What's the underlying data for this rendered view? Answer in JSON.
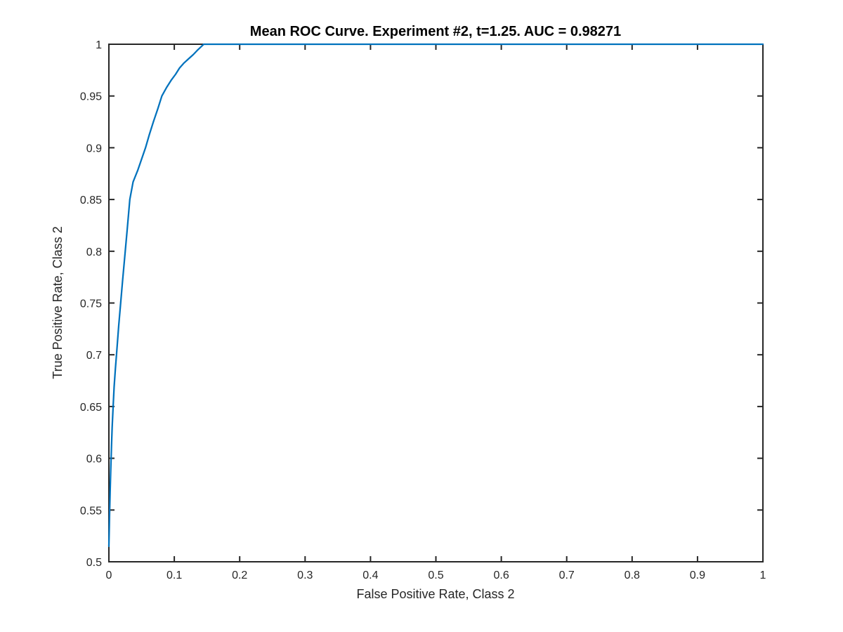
{
  "figure": {
    "background": "#ffffff"
  },
  "chart_data": {
    "type": "line",
    "title": "Mean ROC Curve. Experiment #2, t=1.25. AUC = 0.98271",
    "xlabel": "False Positive Rate, Class 2",
    "ylabel": "True Positive Rate, Class 2",
    "xlim": [
      0,
      1
    ],
    "ylim": [
      0.5,
      1
    ],
    "xticks": [
      0,
      0.1,
      0.2,
      0.3,
      0.4,
      0.5,
      0.6,
      0.7,
      0.8,
      0.9,
      1
    ],
    "xtick_labels": [
      "0",
      "0.1",
      "0.2",
      "0.3",
      "0.4",
      "0.5",
      "0.6",
      "0.7",
      "0.8",
      "0.9",
      "1"
    ],
    "yticks": [
      0.5,
      0.55,
      0.6,
      0.65,
      0.7,
      0.75,
      0.8,
      0.85,
      0.9,
      0.95,
      1
    ],
    "ytick_labels": [
      "0.5",
      "0.55",
      "0.6",
      "0.65",
      "0.7",
      "0.75",
      "0.8",
      "0.85",
      "0.9",
      "0.95",
      "1"
    ],
    "grid": false,
    "legend": null,
    "box": true,
    "tick_direction": "in",
    "axis_color": "#262626",
    "background": "#ffffff",
    "auc": 0.98271,
    "experiment": "#2",
    "threshold": 1.25,
    "series": [
      {
        "name": "mean-roc-curve",
        "color": "#0072BD",
        "line_width": 2.25,
        "points": [
          [
            0.0,
            0.515
          ],
          [
            0.001,
            0.545
          ],
          [
            0.002,
            0.57
          ],
          [
            0.003,
            0.592
          ],
          [
            0.004,
            0.612
          ],
          [
            0.005,
            0.63
          ],
          [
            0.0065,
            0.65
          ],
          [
            0.008,
            0.669
          ],
          [
            0.01,
            0.687
          ],
          [
            0.012,
            0.703
          ],
          [
            0.015,
            0.728
          ],
          [
            0.018,
            0.75
          ],
          [
            0.021,
            0.772
          ],
          [
            0.025,
            0.8
          ],
          [
            0.028,
            0.821
          ],
          [
            0.032,
            0.85
          ],
          [
            0.037,
            0.867
          ],
          [
            0.044,
            0.878
          ],
          [
            0.05,
            0.889
          ],
          [
            0.056,
            0.9
          ],
          [
            0.062,
            0.913
          ],
          [
            0.068,
            0.925
          ],
          [
            0.075,
            0.938
          ],
          [
            0.081,
            0.95
          ],
          [
            0.088,
            0.958
          ],
          [
            0.095,
            0.965
          ],
          [
            0.102,
            0.971
          ],
          [
            0.108,
            0.977
          ],
          [
            0.115,
            0.982
          ],
          [
            0.122,
            0.986
          ],
          [
            0.129,
            0.99
          ],
          [
            0.135,
            0.994
          ],
          [
            0.14,
            0.997
          ],
          [
            0.145,
            1.0
          ],
          [
            1.0,
            1.0
          ]
        ]
      }
    ]
  }
}
